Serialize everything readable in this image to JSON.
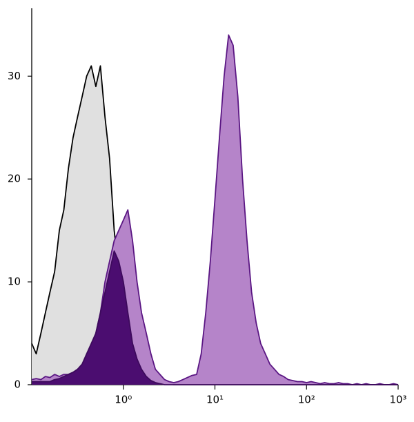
{
  "chart_data": {
    "type": "histogram-overlay",
    "xscale": "log",
    "x": [
      0.1,
      0.112,
      0.126,
      0.141,
      0.158,
      0.178,
      0.2,
      0.224,
      0.251,
      0.282,
      0.316,
      0.355,
      0.398,
      0.447,
      0.501,
      0.562,
      0.631,
      0.708,
      0.794,
      0.891,
      1,
      1.12,
      1.26,
      1.41,
      1.58,
      1.78,
      2,
      2.24,
      2.51,
      2.82,
      3.16,
      3.55,
      3.98,
      4.47,
      5.01,
      5.62,
      6.31,
      7.08,
      7.94,
      8.91,
      10,
      11.2,
      12.6,
      14.1,
      15.8,
      17.8,
      20,
      22.4,
      25.1,
      28.2,
      31.6,
      35.5,
      39.8,
      44.7,
      50.1,
      56.2,
      63.1,
      70.8,
      79.4,
      89.1,
      100,
      112,
      126,
      141,
      158,
      178,
      200,
      224,
      251,
      282,
      316,
      355,
      398,
      447,
      501,
      562,
      631,
      708,
      794,
      891,
      1000
    ],
    "series": [
      {
        "color": "#e0e0e0",
        "line_color": "#000000",
        "values": [
          4,
          3,
          5,
          7,
          9,
          11,
          15,
          17,
          21,
          24,
          26,
          28,
          30,
          31,
          29,
          31,
          26,
          22,
          15,
          11,
          8,
          5,
          4,
          3,
          2,
          1.5,
          1,
          0.8,
          0.5,
          0.3,
          0.1,
          0,
          0,
          0,
          0,
          0,
          0,
          0,
          0,
          0,
          0,
          0,
          0,
          0,
          0,
          0,
          0,
          0,
          0,
          0,
          0,
          0,
          0,
          0,
          0,
          0,
          0,
          0,
          0,
          0,
          0,
          0,
          0,
          0,
          0,
          0,
          0,
          0,
          0,
          0,
          0,
          0,
          0,
          0,
          0,
          0,
          0,
          0,
          0,
          0,
          0
        ]
      },
      {
        "color": "#b584c9",
        "line_color": "#5a1683",
        "values": [
          0.5,
          0.6,
          0.5,
          0.8,
          0.7,
          1,
          0.8,
          1,
          1,
          1.2,
          1.5,
          1.8,
          2,
          3,
          5,
          7,
          10,
          12,
          14,
          15,
          16,
          17,
          14,
          10,
          7,
          5,
          3,
          1.5,
          1,
          0.5,
          0.3,
          0.2,
          0.3,
          0.5,
          0.7,
          0.9,
          1,
          3,
          7,
          12,
          18,
          24,
          30,
          34,
          33,
          28,
          20,
          14,
          9,
          6,
          4,
          3,
          2,
          1.5,
          1,
          0.8,
          0.5,
          0.4,
          0.3,
          0.3,
          0.2,
          0.3,
          0.2,
          0.1,
          0.2,
          0.1,
          0.1,
          0.2,
          0.1,
          0.1,
          0,
          0.1,
          0,
          0.1,
          0,
          0,
          0.1,
          0,
          0,
          0.1,
          0
        ]
      },
      {
        "color": "#4b0d70",
        "line_color": "#3d0a5c",
        "values": [
          0.3,
          0.3,
          0.3,
          0.3,
          0.3,
          0.5,
          0.6,
          0.8,
          1,
          1.2,
          1.5,
          2,
          3,
          4,
          5,
          7,
          9,
          11,
          13,
          12,
          10,
          7,
          4,
          2.5,
          1.5,
          0.8,
          0.4,
          0.2,
          0.1,
          0,
          0,
          0,
          0,
          0,
          0,
          0,
          0,
          0,
          0,
          0,
          0,
          0,
          0,
          0,
          0,
          0,
          0,
          0,
          0,
          0,
          0,
          0,
          0,
          0,
          0,
          0,
          0,
          0,
          0,
          0,
          0,
          0,
          0,
          0,
          0,
          0,
          0,
          0,
          0,
          0,
          0,
          0,
          0,
          0,
          0,
          0,
          0,
          0,
          0,
          0,
          0
        ]
      }
    ],
    "draw_order": [
      0,
      1,
      2
    ],
    "xlim": [
      0.1,
      1000
    ],
    "xticks": [
      {
        "value": 1,
        "label": "10⁰"
      },
      {
        "value": 10,
        "label": "10¹"
      },
      {
        "value": 100,
        "label": "10²"
      },
      {
        "value": 1000,
        "label": "10³"
      }
    ],
    "ylim": [
      0,
      36.6
    ],
    "yticks": [
      0,
      10,
      20,
      30
    ]
  }
}
